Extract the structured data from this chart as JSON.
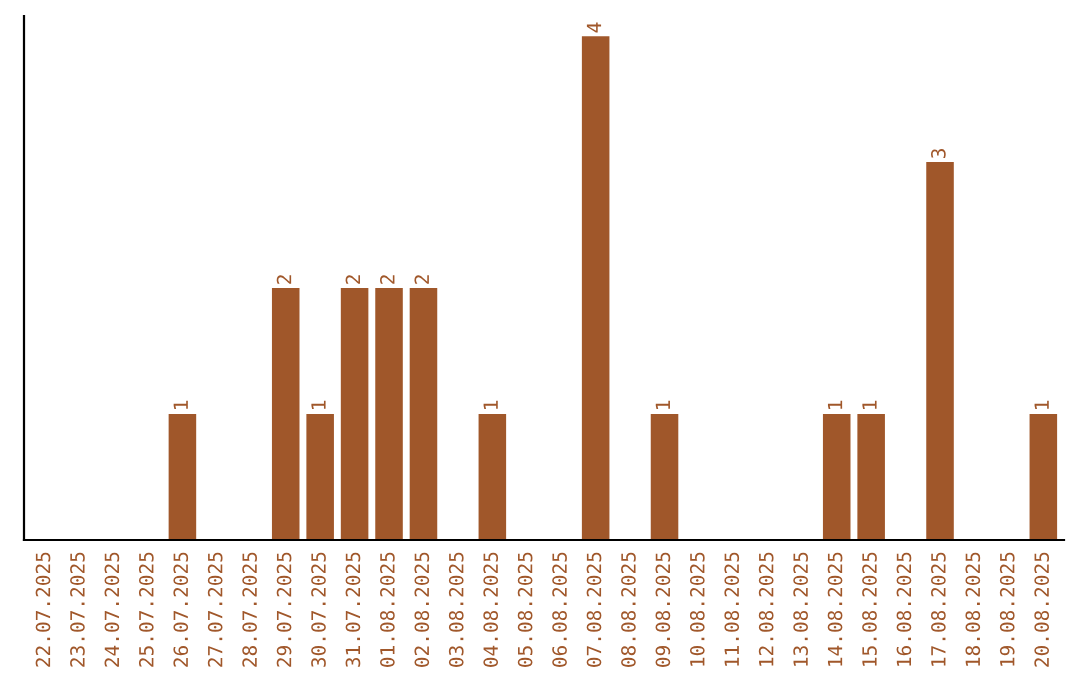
{
  "chart_data": {
    "type": "bar",
    "categories": [
      "22.07.2025",
      "23.07.2025",
      "24.07.2025",
      "25.07.2025",
      "26.07.2025",
      "27.07.2025",
      "28.07.2025",
      "29.07.2025",
      "30.07.2025",
      "31.07.2025",
      "01.08.2025",
      "02.08.2025",
      "03.08.2025",
      "04.08.2025",
      "05.08.2025",
      "06.08.2025",
      "07.08.2025",
      "08.08.2025",
      "09.08.2025",
      "10.08.2025",
      "11.08.2025",
      "12.08.2025",
      "13.08.2025",
      "14.08.2025",
      "15.08.2025",
      "16.08.2025",
      "17.08.2025",
      "18.08.2025",
      "19.08.2025",
      "20.08.2025"
    ],
    "values": [
      0,
      0,
      0,
      0,
      1,
      0,
      0,
      2,
      1,
      2,
      2,
      2,
      0,
      1,
      0,
      0,
      4,
      0,
      1,
      0,
      0,
      0,
      0,
      1,
      1,
      0,
      3,
      0,
      0,
      1
    ],
    "value_labels": [
      null,
      null,
      null,
      null,
      "1",
      null,
      null,
      "2",
      "1",
      "2",
      "2",
      "2",
      null,
      "1",
      null,
      null,
      "4",
      null,
      "1",
      null,
      null,
      null,
      null,
      "1",
      "1",
      null,
      "3",
      null,
      null,
      "1"
    ],
    "color": "#a0572a",
    "tick_labels": "x",
    "grid": false
  }
}
